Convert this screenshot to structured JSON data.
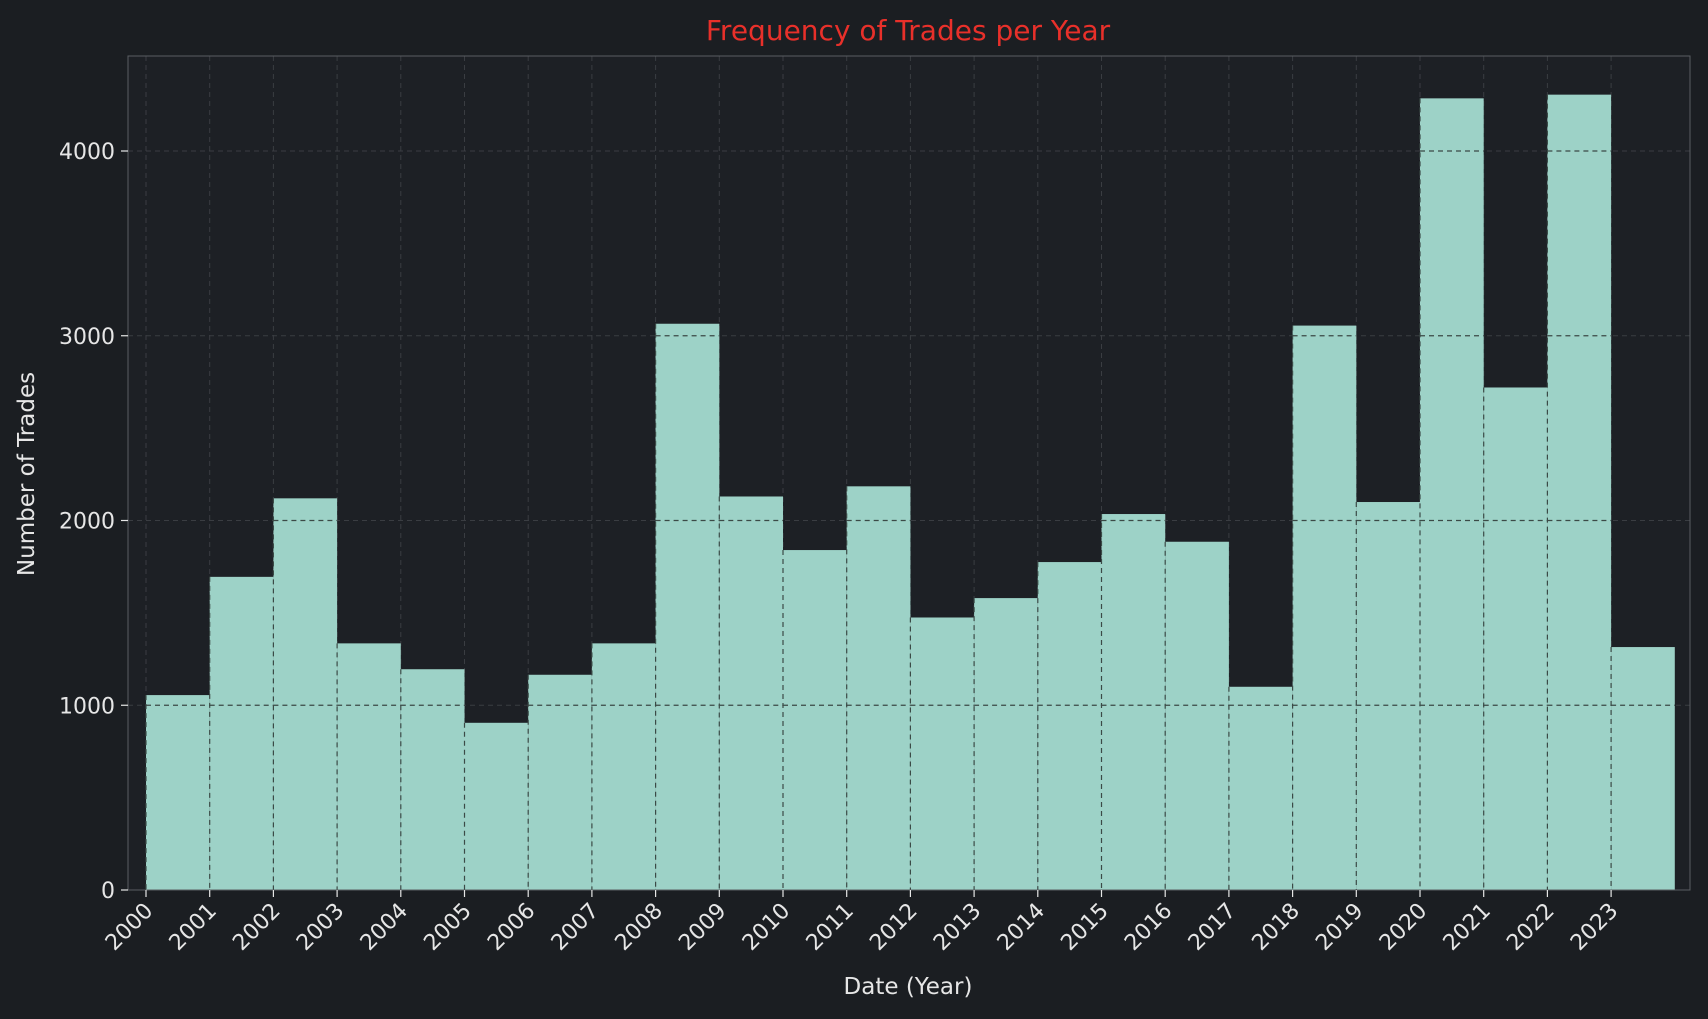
{
  "chart_data": {
    "type": "bar",
    "title": "Frequency of Trades per Year",
    "xlabel": "Date (Year)",
    "ylabel": "Number of Trades",
    "categories": [
      "2000",
      "2001",
      "2002",
      "2003",
      "2004",
      "2005",
      "2006",
      "2007",
      "2008",
      "2009",
      "2010",
      "2011",
      "2012",
      "2013",
      "2014",
      "2015",
      "2016",
      "2017",
      "2018",
      "2019",
      "2020",
      "2021",
      "2022",
      "2023"
    ],
    "values": [
      1055,
      1695,
      2120,
      1335,
      1195,
      905,
      1165,
      1335,
      3065,
      2130,
      1840,
      2185,
      1475,
      1580,
      1775,
      2035,
      1885,
      1100,
      3055,
      2100,
      4285,
      2720,
      4305,
      1315
    ],
    "yticks": [
      0,
      1000,
      2000,
      3000,
      4000
    ],
    "ylim": [
      0,
      4500
    ],
    "grid": true,
    "colors": {
      "background": "#1b1e22",
      "plot_background": "#1d2025",
      "bar_fill": "#9dd2c7",
      "title": "#e8302a",
      "text": "#e6e6e6",
      "grid": "#3a3d42",
      "bar_grid": "#3b4a46"
    }
  }
}
